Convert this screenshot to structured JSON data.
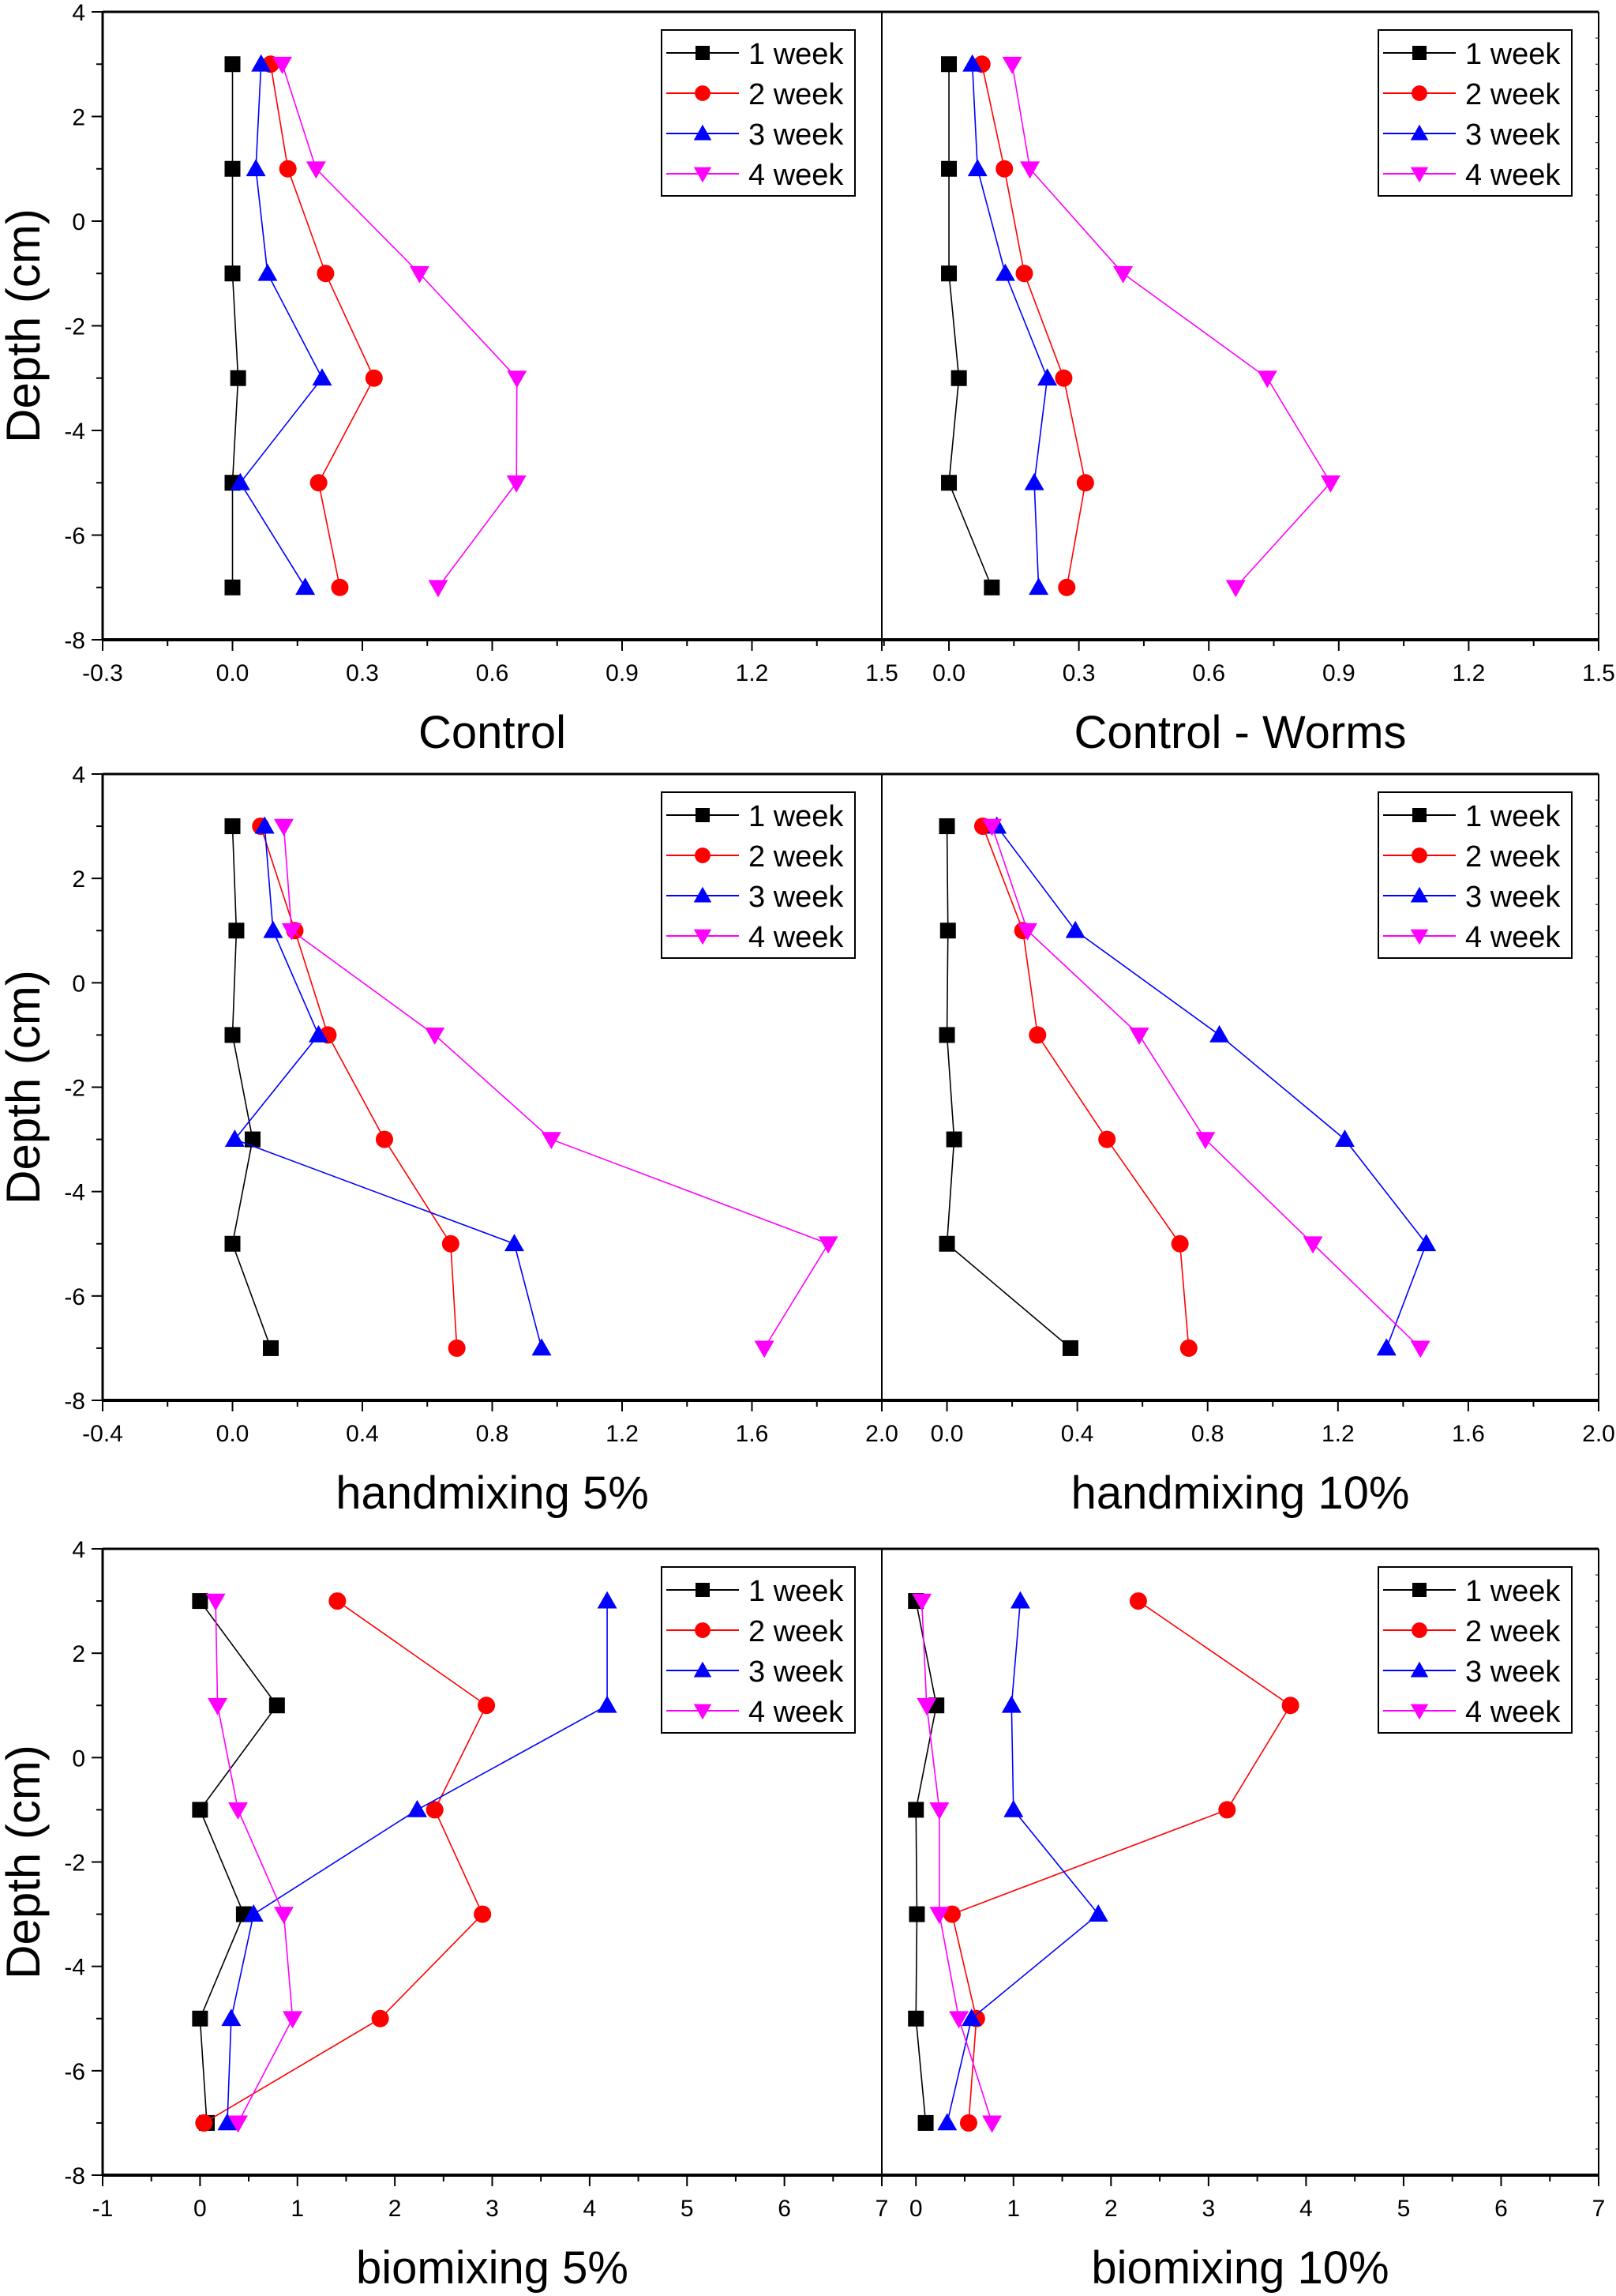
{
  "figure": {
    "ylabel": "Depth (cm)"
  },
  "chart_data": [
    {
      "type": "line",
      "title": "Control",
      "xlabel": "",
      "ylabel": "Depth (cm)",
      "xlim": [
        -0.3,
        1.5
      ],
      "ylim": [
        -8,
        4
      ],
      "xticks": [
        -0.3,
        0.0,
        0.3,
        0.6,
        0.9,
        1.2,
        1.5
      ],
      "xtick_labels": [
        "-0.3",
        "0.0",
        "0.3",
        "0.6",
        "0.9",
        "1.2",
        "1.5"
      ],
      "yticks": [
        -8,
        -6,
        -4,
        -2,
        0,
        2,
        4
      ],
      "ytick_labels": [
        "-8",
        "-6",
        "-4",
        "-2",
        "0",
        "2",
        "4"
      ],
      "depth": [
        3,
        1,
        -1,
        -3,
        -5,
        -7
      ],
      "legend": "top-right",
      "grid": false,
      "series": [
        {
          "name": "1 week",
          "color": "#000000",
          "marker": "square",
          "values": [
            0.0,
            0.0,
            0.0,
            0.013,
            0.0,
            0.0
          ]
        },
        {
          "name": "2 week",
          "color": "#ff0000",
          "marker": "circle",
          "values": [
            0.088,
            0.128,
            0.215,
            0.327,
            0.199,
            0.248
          ]
        },
        {
          "name": "3 week",
          "color": "#0000ff",
          "marker": "triangle-up",
          "values": [
            0.066,
            0.054,
            0.081,
            0.207,
            0.018,
            0.168
          ]
        },
        {
          "name": "4 week",
          "color": "#ff00ff",
          "marker": "triangle-down",
          "values": [
            0.115,
            0.193,
            0.432,
            0.657,
            0.656,
            0.475
          ]
        }
      ]
    },
    {
      "type": "line",
      "title": "Control - Worms",
      "xlabel": "",
      "ylabel": "",
      "xlim": [
        -0.155,
        1.5
      ],
      "ylim": [
        -8,
        4
      ],
      "xticks": [
        0.0,
        0.3,
        0.6,
        0.9,
        1.2,
        1.5
      ],
      "xtick_labels": [
        "0.0",
        "0.3",
        "0.6",
        "0.9",
        "1.2",
        "1.5"
      ],
      "yticks": [],
      "ytick_labels": [],
      "depth": [
        3,
        1,
        -1,
        -3,
        -5,
        -7
      ],
      "legend": "top-right",
      "grid": false,
      "series": [
        {
          "name": "1 week",
          "color": "#000000",
          "marker": "square",
          "values": [
            0.0,
            0.0,
            0.0,
            0.023,
            0.0,
            0.099
          ]
        },
        {
          "name": "2 week",
          "color": "#ff0000",
          "marker": "circle",
          "values": [
            0.076,
            0.128,
            0.174,
            0.265,
            0.315,
            0.272
          ]
        },
        {
          "name": "3 week",
          "color": "#0000ff",
          "marker": "triangle-up",
          "values": [
            0.054,
            0.066,
            0.13,
            0.227,
            0.197,
            0.207
          ]
        },
        {
          "name": "4 week",
          "color": "#ff00ff",
          "marker": "triangle-down",
          "values": [
            0.146,
            0.187,
            0.402,
            0.735,
            0.881,
            0.662
          ]
        }
      ]
    },
    {
      "type": "line",
      "title": "handmixing 5%",
      "xlabel": "",
      "ylabel": "Depth (cm)",
      "xlim": [
        -0.4,
        2.0
      ],
      "ylim": [
        -8,
        4
      ],
      "xticks": [
        -0.4,
        0.0,
        0.4,
        0.8,
        1.2,
        1.6,
        2.0
      ],
      "xtick_labels": [
        "-0.4",
        "0.0",
        "0.4",
        "0.8",
        "1.2",
        "1.6",
        "2.0"
      ],
      "yticks": [
        -8,
        -6,
        -4,
        -2,
        0,
        2,
        4
      ],
      "ytick_labels": [
        "-8",
        "-6",
        "-4",
        "-2",
        "0",
        "2",
        "4"
      ],
      "depth": [
        3,
        1,
        -1,
        -3,
        -5,
        -7
      ],
      "legend": "top-right",
      "grid": false,
      "series": [
        {
          "name": "1 week",
          "color": "#000000",
          "marker": "square",
          "values": [
            0.0,
            0.012,
            0.0,
            0.062,
            0.0,
            0.118
          ]
        },
        {
          "name": "2 week",
          "color": "#ff0000",
          "marker": "circle",
          "values": [
            0.087,
            0.192,
            0.294,
            0.468,
            0.672,
            0.691
          ]
        },
        {
          "name": "3 week",
          "color": "#0000ff",
          "marker": "triangle-up",
          "values": [
            0.099,
            0.125,
            0.265,
            0.007,
            0.868,
            0.952
          ]
        },
        {
          "name": "4 week",
          "color": "#ff00ff",
          "marker": "triangle-down",
          "values": [
            0.158,
            0.182,
            0.623,
            0.982,
            1.835,
            1.638
          ]
        }
      ]
    },
    {
      "type": "line",
      "title": "handmixing 10%",
      "xlabel": "",
      "ylabel": "",
      "xlim": [
        -0.2,
        2.0
      ],
      "ylim": [
        -8,
        4
      ],
      "xticks": [
        0.0,
        0.4,
        0.8,
        1.2,
        1.6,
        2.0
      ],
      "xtick_labels": [
        "0.0",
        "0.4",
        "0.8",
        "1.2",
        "1.6",
        "2.0"
      ],
      "yticks": [],
      "ytick_labels": [],
      "depth": [
        3,
        1,
        -1,
        -3,
        -5,
        -7
      ],
      "legend": "top-right",
      "grid": false,
      "series": [
        {
          "name": "1 week",
          "color": "#000000",
          "marker": "square",
          "values": [
            0.0,
            0.003,
            0.0,
            0.022,
            0.0,
            0.379
          ]
        },
        {
          "name": "2 week",
          "color": "#ff0000",
          "marker": "circle",
          "values": [
            0.11,
            0.233,
            0.278,
            0.491,
            0.715,
            0.742
          ]
        },
        {
          "name": "3 week",
          "color": "#0000ff",
          "marker": "triangle-up",
          "values": [
            0.153,
            0.394,
            0.836,
            1.221,
            1.471,
            1.349
          ]
        },
        {
          "name": "4 week",
          "color": "#ff00ff",
          "marker": "triangle-down",
          "values": [
            0.138,
            0.247,
            0.59,
            0.793,
            1.123,
            1.453
          ]
        }
      ]
    },
    {
      "type": "line",
      "title": "biomixing 5%",
      "xlabel": "",
      "ylabel": "Depth (cm)",
      "xlim": [
        -1,
        7
      ],
      "ylim": [
        -8,
        4
      ],
      "xticks": [
        -1,
        0,
        1,
        2,
        3,
        4,
        5,
        6,
        7
      ],
      "xtick_labels": [
        "-1",
        "0",
        "1",
        "2",
        "3",
        "4",
        "5",
        "6",
        "7"
      ],
      "yticks": [
        -8,
        -6,
        -4,
        -2,
        0,
        2,
        4
      ],
      "ytick_labels": [
        "-8",
        "-6",
        "-4",
        "-2",
        "0",
        "2",
        "4"
      ],
      "depth": [
        3,
        1,
        -1,
        -3,
        -5,
        -7
      ],
      "legend": "top-right",
      "grid": false,
      "series": [
        {
          "name": "1 week",
          "color": "#000000",
          "marker": "square",
          "values": [
            0.0,
            0.79,
            0.0,
            0.45,
            0.0,
            0.07
          ]
        },
        {
          "name": "2 week",
          "color": "#ff0000",
          "marker": "circle",
          "values": [
            1.41,
            2.94,
            2.41,
            2.9,
            1.85,
            0.04
          ]
        },
        {
          "name": "3 week",
          "color": "#0000ff",
          "marker": "triangle-up",
          "values": [
            4.18,
            4.18,
            2.23,
            0.55,
            0.32,
            0.28
          ]
        },
        {
          "name": "4 week",
          "color": "#ff00ff",
          "marker": "triangle-down",
          "values": [
            0.16,
            0.18,
            0.39,
            0.86,
            0.95,
            0.39
          ]
        }
      ]
    },
    {
      "type": "line",
      "title": "biomixing 10%",
      "xlabel": "",
      "ylabel": "",
      "xlim": [
        -0.35,
        7
      ],
      "ylim": [
        -8,
        4
      ],
      "xticks": [
        0,
        1,
        2,
        3,
        4,
        5,
        6,
        7
      ],
      "xtick_labels": [
        "0",
        "1",
        "2",
        "3",
        "4",
        "5",
        "6",
        "7"
      ],
      "yticks": [],
      "ytick_labels": [],
      "depth": [
        3,
        1,
        -1,
        -3,
        -5,
        -7
      ],
      "legend": "top-right",
      "grid": false,
      "series": [
        {
          "name": "1 week",
          "color": "#000000",
          "marker": "square",
          "values": [
            0.0,
            0.21,
            0.0,
            0.01,
            0.0,
            0.1
          ]
        },
        {
          "name": "2 week",
          "color": "#ff0000",
          "marker": "circle",
          "values": [
            2.28,
            3.84,
            3.19,
            0.37,
            0.62,
            0.54
          ]
        },
        {
          "name": "3 week",
          "color": "#0000ff",
          "marker": "triangle-up",
          "values": [
            1.07,
            0.98,
            1.0,
            1.87,
            0.57,
            0.32
          ]
        },
        {
          "name": "4 week",
          "color": "#ff00ff",
          "marker": "triangle-down",
          "values": [
            0.06,
            0.11,
            0.24,
            0.24,
            0.44,
            0.78
          ]
        }
      ]
    }
  ]
}
